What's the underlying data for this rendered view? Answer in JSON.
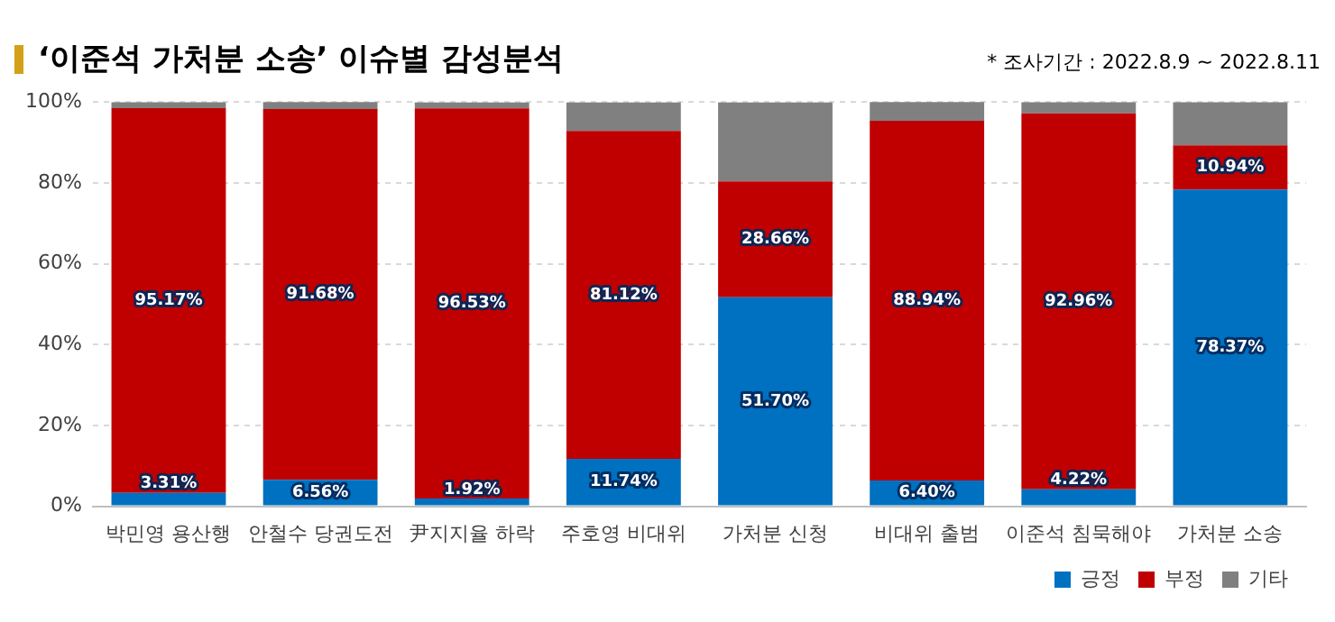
{
  "chart_data": {
    "type": "bar",
    "title": "‘이준석 가처분 소송’ 이슈별 감성분석",
    "annotations": [
      "* 조사기간 : 2022.8.9 ~ 2022.8.11"
    ],
    "categories": [
      "박민영 용산행",
      "안철수 당권도전",
      "尹지지율 하락",
      "주호영 비대위",
      "가처분 신청",
      "비대위 출범",
      "이준석 침묵해야",
      "가처분 소송"
    ],
    "stacked": true,
    "ylim": [
      0,
      100
    ],
    "yticks": [
      {
        "value": 0,
        "label": "0%"
      },
      {
        "value": 20,
        "label": "20%"
      },
      {
        "value": 40,
        "label": "40%"
      },
      {
        "value": 60,
        "label": "60%"
      },
      {
        "value": 80,
        "label": "80%"
      },
      {
        "value": 100,
        "label": "100%"
      }
    ],
    "grid": "y",
    "legend": "bottom right",
    "series": [
      {
        "name": "긍정",
        "color": "#0070c0",
        "values": [
          3.31,
          6.56,
          1.92,
          11.74,
          51.7,
          6.4,
          4.22,
          78.37
        ],
        "value_labels": [
          "3.31%",
          "6.56%",
          "1.92%",
          "11.74%",
          "51.70%",
          "6.40%",
          "4.22%",
          "78.37%"
        ]
      },
      {
        "name": "부정",
        "color": "#c00000",
        "values": [
          95.17,
          91.68,
          96.53,
          81.12,
          28.66,
          88.94,
          92.96,
          10.94
        ],
        "value_labels": [
          "95.17%",
          "91.68%",
          "96.53%",
          "81.12%",
          "28.66%",
          "88.94%",
          "92.96%",
          "10.94%"
        ]
      },
      {
        "name": "기타",
        "color": "#808080",
        "values": [
          1.5,
          1.8,
          1.5,
          7.1,
          19.6,
          4.7,
          2.8,
          10.7
        ]
      }
    ]
  }
}
